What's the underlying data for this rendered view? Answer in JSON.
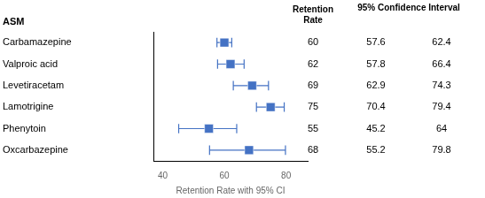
{
  "chart_data": {
    "type": "forest",
    "categories": [
      "Carbamazepine",
      "Valproic acid",
      "Levetiracetam",
      "Lamotrigine",
      "Phenytoin",
      "Oxcarbazepine"
    ],
    "values": [
      60,
      62,
      69,
      75,
      55,
      68
    ],
    "ci_low": [
      57.6,
      57.8,
      62.9,
      70.4,
      45.2,
      55.2
    ],
    "ci_high": [
      62.4,
      66.4,
      74.3,
      79.4,
      64,
      79.8
    ],
    "color": "#4472C4",
    "marker": "square",
    "xlabel": "Retention Rate with 95% CI",
    "xlim": [
      37,
      87
    ],
    "xticks": [
      40,
      60,
      80
    ],
    "grid": false,
    "column_headers": [
      "ASM",
      "Retention\nRate",
      "95% Confidence Interval"
    ]
  }
}
